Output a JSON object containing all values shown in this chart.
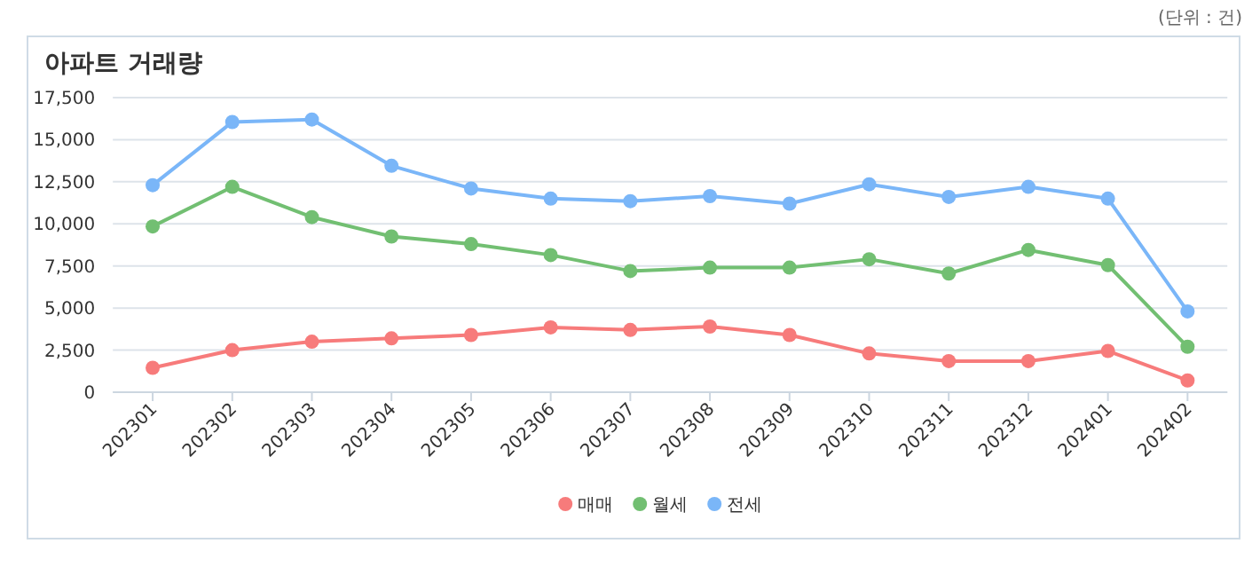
{
  "chart_data": {
    "type": "line",
    "title": "아파트 거래량",
    "annotations": [
      "(단위 : 건)"
    ],
    "categories": [
      "202301",
      "202302",
      "202303",
      "202304",
      "202305",
      "202306",
      "202307",
      "202308",
      "202309",
      "202310",
      "202311",
      "202312",
      "202401",
      "202402"
    ],
    "series": [
      {
        "name": "매매",
        "color": "#f77b7b",
        "values": [
          1450,
          2500,
          3000,
          3200,
          3400,
          3850,
          3700,
          3900,
          3400,
          2300,
          1850,
          1850,
          2450,
          700
        ]
      },
      {
        "name": "월세",
        "color": "#72bf72",
        "values": [
          9850,
          12200,
          10400,
          9250,
          8800,
          8150,
          7200,
          7400,
          7400,
          7900,
          7050,
          8450,
          7550,
          2700
        ]
      },
      {
        "name": "전세",
        "color": "#7ab6f8",
        "values": [
          12300,
          16050,
          16200,
          13450,
          12100,
          11500,
          11350,
          11650,
          11200,
          12350,
          11600,
          12200,
          11500,
          4800
        ]
      }
    ],
    "ylim": [
      0,
      17500
    ],
    "yticks": [
      0,
      {
        "value": 2500,
        "label": "2,500"
      },
      {
        "value": 5000,
        "label": "5,000"
      },
      {
        "value": 7500,
        "label": "7,500"
      },
      {
        "value": 10000,
        "label": "10,000"
      },
      {
        "value": 12500,
        "label": "12,500"
      },
      {
        "value": 15000,
        "label": "15,000"
      },
      {
        "value": 17500,
        "label": "17,500"
      }
    ],
    "grid": "y",
    "legend": "bottom",
    "marker": "circle",
    "line_style": "solid"
  }
}
